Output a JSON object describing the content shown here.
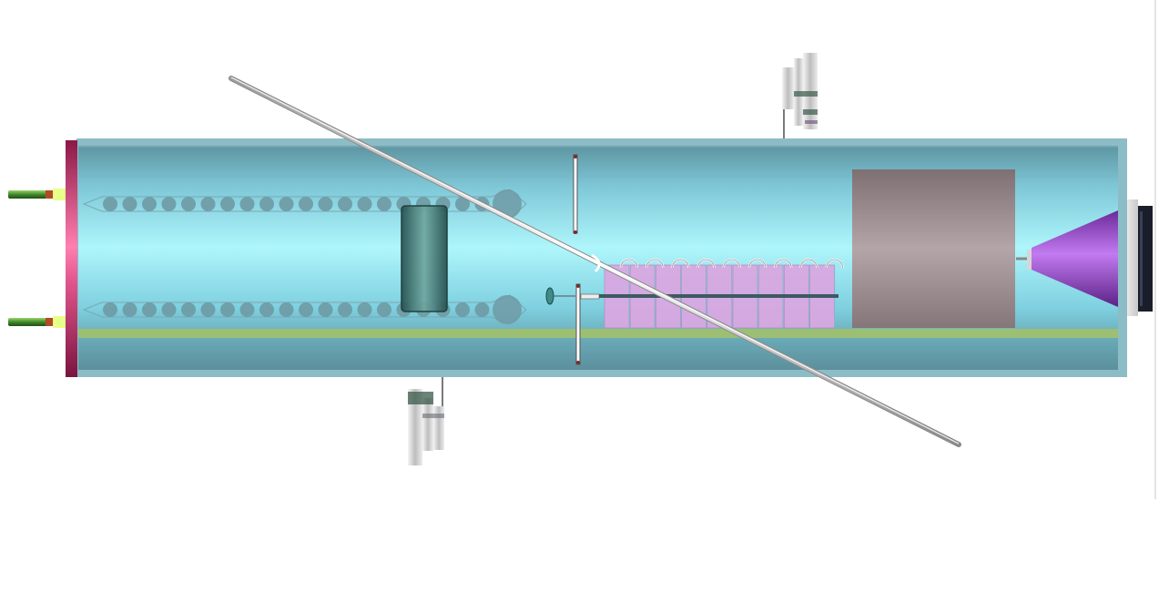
{
  "scene": {
    "kind": "schematic-render",
    "description_visible_text": "",
    "components": [
      {
        "id": "vacuum-chamber",
        "icon": "tube-icon"
      },
      {
        "id": "end-flange-left",
        "icon": "flange-icon"
      },
      {
        "id": "feedthrough-pins",
        "icon": "pin-icon",
        "count": 2
      },
      {
        "id": "bead-chains",
        "icon": "bead-chain-icon",
        "count": 2,
        "beads_per_chain": 20
      },
      {
        "id": "glass-cylinder",
        "icon": "cylinder-icon"
      },
      {
        "id": "aperture-disks",
        "icon": "disk-icon",
        "count": 2
      },
      {
        "id": "ring-array",
        "icon": "ring-icon",
        "count": 9
      },
      {
        "id": "pink-block-array",
        "icon": "block-icon",
        "count": 9
      },
      {
        "id": "mauve-block",
        "icon": "block-icon"
      },
      {
        "id": "violet-cone",
        "icon": "cone-icon"
      },
      {
        "id": "viewport-right",
        "icon": "window-icon"
      },
      {
        "id": "vacuum-gauges",
        "icon": "gauge-icon",
        "count": 2
      },
      {
        "id": "diagonal-rod",
        "icon": "rod-icon"
      },
      {
        "id": "floor-rail",
        "icon": "rail-icon"
      }
    ]
  },
  "colors": {
    "chamber_light": "#aef6fb",
    "chamber_mid": "#7fd4e4",
    "chamber_dark": "#5f97a4",
    "chamber_frame": "#8cbcc6",
    "flange": "#9b1f50",
    "flange_highlight": "#ff7fb0",
    "pin_green": "#3f8a2a",
    "pin_tip": "#e8ff8a",
    "bead": "#6e9aa4",
    "cylinder": "#2f6b68",
    "pink_block": "#d9a8e2",
    "mauve_block": "#9a888c",
    "cone": "#a64fd8",
    "rail": "#9cbf73",
    "rod": "#d8d8d8",
    "gauge_dark": "#3b5a4a"
  }
}
